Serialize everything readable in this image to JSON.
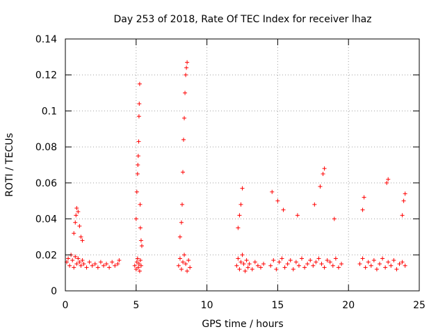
{
  "chart_data": {
    "type": "scatter",
    "title": "Day 253 of 2018, Rate Of TEC Index for receiver lhaz",
    "xlabel": "GPS time / hours",
    "ylabel": "ROTI / TECUs",
    "xlim": [
      0,
      25
    ],
    "ylim": [
      0,
      0.14
    ],
    "xticks": [
      0,
      5,
      10,
      15,
      20,
      25
    ],
    "xtick_labels": [
      "0",
      "5",
      "10",
      "15",
      "20",
      "25"
    ],
    "yticks": [
      0,
      0.02,
      0.04,
      0.06,
      0.08,
      0.1,
      0.12,
      0.14
    ],
    "ytick_labels": [
      "0",
      "0.02",
      "0.04",
      "0.06",
      "0.08",
      "0.1",
      "0.12",
      "0.14"
    ],
    "grid": true,
    "marker": "+",
    "color": "#ff0000",
    "series": [
      {
        "x": [
          0.1,
          0.2,
          0.3,
          0.4,
          0.5,
          0.6,
          0.7,
          0.8,
          0.9,
          1.0,
          1.1,
          1.2,
          1.3,
          1.5,
          1.7,
          1.9,
          2.1,
          2.3,
          2.5,
          2.7,
          2.9,
          3.1,
          3.3,
          3.5,
          3.7,
          3.8,
          0.6,
          0.7,
          0.75,
          0.8,
          0.9,
          1.0,
          1.1,
          1.2,
          4.9,
          5.0,
          5.05,
          5.1,
          5.15,
          5.2,
          5.25,
          5.3,
          5.35,
          5.0,
          5.05,
          5.1,
          5.12,
          5.15,
          5.18,
          5.2,
          5.22,
          5.25,
          5.28,
          5.3,
          5.35,
          5.4,
          8.0,
          8.1,
          8.2,
          8.3,
          8.4,
          8.5,
          8.6,
          8.7,
          8.8,
          8.1,
          8.2,
          8.25,
          8.3,
          8.35,
          8.4,
          8.45,
          8.5,
          8.55,
          8.6,
          12.1,
          12.2,
          12.3,
          12.4,
          12.5,
          12.6,
          12.7,
          12.8,
          12.9,
          13.0,
          13.2,
          13.4,
          13.6,
          13.8,
          14.0,
          12.2,
          12.3,
          12.4,
          12.5,
          14.5,
          14.7,
          14.9,
          15.1,
          15.3,
          15.5,
          15.7,
          15.9,
          16.1,
          16.3,
          16.5,
          16.7,
          16.9,
          17.1,
          17.3,
          17.5,
          17.7,
          17.9,
          18.1,
          18.3,
          18.5,
          18.7,
          18.9,
          19.1,
          19.3,
          19.5,
          14.6,
          15.0,
          15.4,
          16.4,
          17.6,
          18.0,
          18.2,
          18.3,
          19.0,
          20.8,
          21.0,
          21.2,
          21.4,
          21.6,
          21.8,
          22.0,
          22.2,
          22.4,
          22.6,
          22.8,
          23.0,
          23.2,
          23.4,
          23.6,
          23.8,
          24.0,
          21.0,
          21.1,
          22.7,
          22.8,
          23.9,
          24.0,
          23.8
        ],
        "y": [
          0.016,
          0.018,
          0.014,
          0.02,
          0.017,
          0.013,
          0.019,
          0.015,
          0.018,
          0.016,
          0.014,
          0.017,
          0.015,
          0.013,
          0.016,
          0.014,
          0.015,
          0.013,
          0.016,
          0.014,
          0.015,
          0.013,
          0.016,
          0.014,
          0.015,
          0.017,
          0.032,
          0.038,
          0.042,
          0.046,
          0.044,
          0.036,
          0.03,
          0.028,
          0.014,
          0.012,
          0.016,
          0.018,
          0.013,
          0.015,
          0.011,
          0.017,
          0.014,
          0.04,
          0.055,
          0.065,
          0.07,
          0.075,
          0.083,
          0.097,
          0.104,
          0.115,
          0.048,
          0.035,
          0.028,
          0.025,
          0.014,
          0.018,
          0.012,
          0.016,
          0.02,
          0.015,
          0.011,
          0.017,
          0.013,
          0.03,
          0.038,
          0.048,
          0.066,
          0.084,
          0.096,
          0.11,
          0.12,
          0.124,
          0.127,
          0.014,
          0.018,
          0.012,
          0.016,
          0.02,
          0.015,
          0.011,
          0.017,
          0.013,
          0.015,
          0.012,
          0.016,
          0.014,
          0.013,
          0.015,
          0.035,
          0.042,
          0.048,
          0.057,
          0.014,
          0.017,
          0.012,
          0.016,
          0.018,
          0.013,
          0.015,
          0.017,
          0.012,
          0.016,
          0.014,
          0.018,
          0.013,
          0.015,
          0.017,
          0.014,
          0.016,
          0.018,
          0.015,
          0.013,
          0.017,
          0.016,
          0.014,
          0.018,
          0.013,
          0.015,
          0.055,
          0.05,
          0.045,
          0.042,
          0.048,
          0.058,
          0.065,
          0.068,
          0.04,
          0.015,
          0.018,
          0.013,
          0.016,
          0.014,
          0.017,
          0.012,
          0.015,
          0.018,
          0.013,
          0.016,
          0.014,
          0.017,
          0.012,
          0.015,
          0.016,
          0.014,
          0.045,
          0.052,
          0.06,
          0.062,
          0.05,
          0.054,
          0.042
        ]
      }
    ]
  }
}
